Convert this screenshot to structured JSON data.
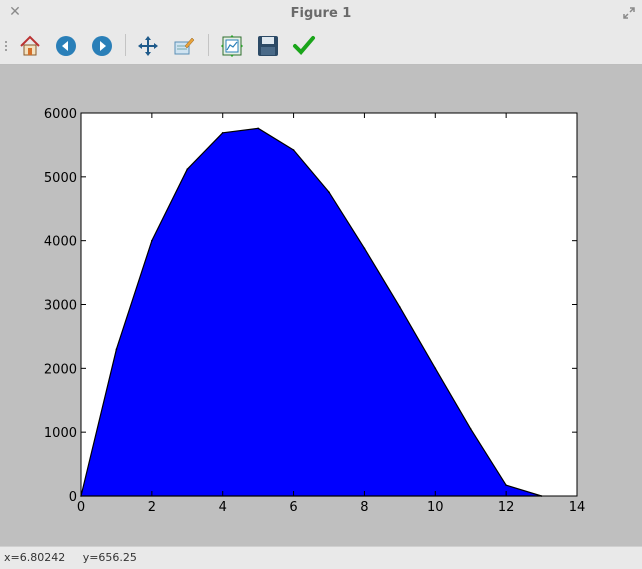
{
  "window": {
    "title": "Figure 1"
  },
  "toolbar": {
    "buttons": [
      {
        "icon": "home-icon",
        "name": "home-button"
      },
      {
        "icon": "back-arrow-icon",
        "name": "back-button"
      },
      {
        "icon": "forward-arrow-icon",
        "name": "forward-button"
      },
      {
        "icon": "pan-icon",
        "name": "pan-button"
      },
      {
        "icon": "zoom-icon",
        "name": "zoom-button"
      },
      {
        "icon": "configure-subplots-icon",
        "name": "subplots-button"
      },
      {
        "icon": "save-icon",
        "name": "save-button"
      },
      {
        "icon": "checkmark-icon",
        "name": "edit-axis-button"
      }
    ]
  },
  "status": {
    "coords": "x=6.80242     y=656.25"
  },
  "colors": {
    "fill": "#0000ff",
    "edge": "#000000"
  },
  "chart_data": {
    "type": "area",
    "x": [
      0,
      1,
      2,
      3,
      4,
      5,
      6,
      7,
      8,
      9,
      10,
      11,
      12,
      13
    ],
    "values": [
      0,
      2300,
      4000,
      5120,
      5690,
      5760,
      5420,
      4760,
      3880,
      2960,
      2000,
      1050,
      170,
      0
    ],
    "xlim": [
      0,
      14
    ],
    "ylim": [
      0,
      6000
    ],
    "xticks": [
      "0",
      "2",
      "4",
      "6",
      "8",
      "10",
      "12",
      "14"
    ],
    "yticks": [
      "0",
      "1000",
      "2000",
      "3000",
      "4000",
      "5000",
      "6000"
    ],
    "grid": false
  }
}
